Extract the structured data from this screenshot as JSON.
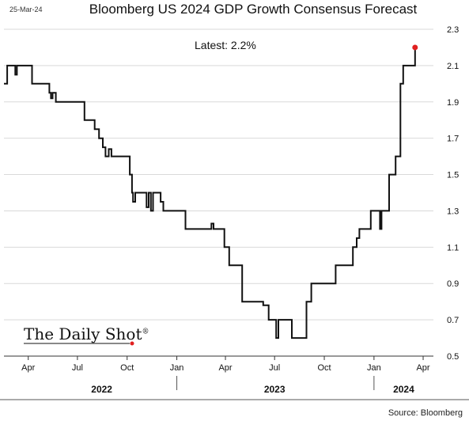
{
  "header": {
    "date": "25-Mar-24",
    "title": "Bloomberg US 2024 GDP Growth Consensus Forecast"
  },
  "annotation": "Latest:  2.2%",
  "logo": "The Daily Shot",
  "logo_mark": "®",
  "source": "Source: Bloomberg",
  "colors": {
    "line": "#111111",
    "latest_point": "#e02020",
    "grid": "#d9d9d9"
  },
  "chart_data": {
    "type": "line",
    "title": "Bloomberg US 2024 GDP Growth Consensus Forecast",
    "y_axis_side": "right",
    "ylim": [
      0.5,
      2.3
    ],
    "yticks": [
      0.5,
      0.7,
      0.9,
      1.1,
      1.3,
      1.5,
      1.7,
      1.9,
      2.1,
      2.3
    ],
    "ytick_labels": [
      "0.5",
      "0.7",
      "0.9",
      "1.1",
      "1.3",
      "1.5",
      "1.7",
      "1.9",
      "2.1",
      "2.3"
    ],
    "x_range": [
      "2022-02-15",
      "2024-04-20"
    ],
    "xticks": [
      "2022-04-01",
      "2022-07-01",
      "2022-10-01",
      "2023-01-01",
      "2023-04-01",
      "2023-07-01",
      "2023-10-01",
      "2024-01-01",
      "2024-04-01"
    ],
    "xtick_labels": [
      "Apr",
      "Jul",
      "Oct",
      "Jan",
      "Apr",
      "Jul",
      "Oct",
      "Jan",
      "Apr"
    ],
    "years": [
      {
        "label": "2022",
        "center": "2022-08-15"
      },
      {
        "label": "2023",
        "center": "2023-07-01"
      },
      {
        "label": "2024",
        "center": "2024-02-25"
      }
    ],
    "year_separators": [
      "2023-01-01",
      "2024-01-01"
    ],
    "grid": "horizontal",
    "series": [
      {
        "step": true,
        "points": [
          [
            "2022-02-15",
            2.0
          ],
          [
            "2022-02-21",
            2.1
          ],
          [
            "2022-03-08",
            2.05
          ],
          [
            "2022-03-11",
            2.1
          ],
          [
            "2022-03-20",
            2.1
          ],
          [
            "2022-04-01",
            2.1
          ],
          [
            "2022-04-08",
            2.0
          ],
          [
            "2022-05-10",
            1.95
          ],
          [
            "2022-05-13",
            1.92
          ],
          [
            "2022-05-16",
            1.95
          ],
          [
            "2022-05-22",
            1.9
          ],
          [
            "2022-07-07",
            1.9
          ],
          [
            "2022-07-14",
            1.8
          ],
          [
            "2022-08-02",
            1.75
          ],
          [
            "2022-08-10",
            1.7
          ],
          [
            "2022-08-17",
            1.65
          ],
          [
            "2022-08-22",
            1.6
          ],
          [
            "2022-08-28",
            1.64
          ],
          [
            "2022-09-02",
            1.6
          ],
          [
            "2022-09-26",
            1.6
          ],
          [
            "2022-10-06",
            1.5
          ],
          [
            "2022-10-10",
            1.4
          ],
          [
            "2022-10-12",
            1.35
          ],
          [
            "2022-10-16",
            1.4
          ],
          [
            "2022-11-03",
            1.4
          ],
          [
            "2022-11-06",
            1.32
          ],
          [
            "2022-11-10",
            1.4
          ],
          [
            "2022-11-14",
            1.3
          ],
          [
            "2022-11-18",
            1.4
          ],
          [
            "2022-11-27",
            1.4
          ],
          [
            "2022-12-02",
            1.35
          ],
          [
            "2022-12-07",
            1.3
          ],
          [
            "2023-01-14",
            1.3
          ],
          [
            "2023-01-17",
            1.2
          ],
          [
            "2023-03-04",
            1.2
          ],
          [
            "2023-03-06",
            1.23
          ],
          [
            "2023-03-10",
            1.2
          ],
          [
            "2023-03-26",
            1.2
          ],
          [
            "2023-03-30",
            1.1
          ],
          [
            "2023-04-08",
            1.0
          ],
          [
            "2023-04-28",
            1.0
          ],
          [
            "2023-05-02",
            0.8
          ],
          [
            "2023-06-01",
            0.8
          ],
          [
            "2023-06-10",
            0.78
          ],
          [
            "2023-06-20",
            0.7
          ],
          [
            "2023-07-01",
            0.7
          ],
          [
            "2023-07-04",
            0.6
          ],
          [
            "2023-07-08",
            0.7
          ],
          [
            "2023-07-28",
            0.7
          ],
          [
            "2023-08-02",
            0.6
          ],
          [
            "2023-08-25",
            0.6
          ],
          [
            "2023-08-29",
            0.8
          ],
          [
            "2023-09-02",
            0.8
          ],
          [
            "2023-09-07",
            0.9
          ],
          [
            "2023-10-18",
            0.9
          ],
          [
            "2023-10-22",
            1.0
          ],
          [
            "2023-11-20",
            1.0
          ],
          [
            "2023-11-23",
            1.1
          ],
          [
            "2023-11-30",
            1.15
          ],
          [
            "2023-12-05",
            1.2
          ],
          [
            "2023-12-20",
            1.2
          ],
          [
            "2023-12-26",
            1.3
          ],
          [
            "2024-01-09",
            1.3
          ],
          [
            "2024-01-12",
            1.2
          ],
          [
            "2024-01-15",
            1.3
          ],
          [
            "2024-01-26",
            1.3
          ],
          [
            "2024-01-29",
            1.5
          ],
          [
            "2024-02-06",
            1.5
          ],
          [
            "2024-02-10",
            1.6
          ],
          [
            "2024-02-16",
            1.6
          ],
          [
            "2024-02-19",
            2.0
          ],
          [
            "2024-02-24",
            2.1
          ],
          [
            "2024-03-14",
            2.1
          ],
          [
            "2024-03-17",
            2.2
          ]
        ]
      }
    ],
    "latest_point": {
      "x": "2024-03-17",
      "y": 2.2
    }
  }
}
